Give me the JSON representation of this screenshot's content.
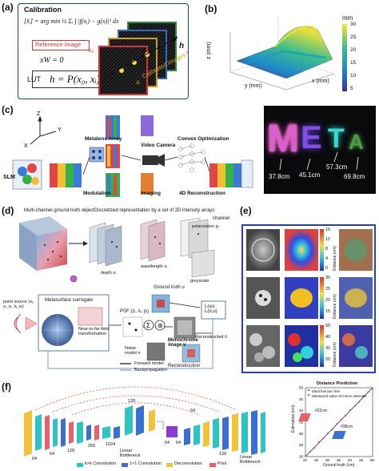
{
  "panels": {
    "a": {
      "label": "(a)",
      "calibration_title": "Calibration",
      "equation": "[x̂ᵢ] = arg min ½ Σᵢ ∫ |f(xᵢ) − g(x)|² dx",
      "reference_image": "Reference image",
      "xw_equation": "xW = 0",
      "lut_label": "LUT",
      "lut_equation": "h = P(x₀, xᵢ)",
      "calibrated_images": "Calibrated images f",
      "axis_h": "h",
      "axis_x0": "x₀",
      "axis_xi": "xᵢ"
    },
    "b": {
      "label": "(b)",
      "colorbar_unit": "mm",
      "colorbar_ticks": [
        "30",
        "25",
        "20",
        "15",
        "10",
        "5"
      ],
      "z_label": "z (mm)",
      "y_label": "y (mm)",
      "x_label": "x (mm)"
    },
    "c": {
      "label": "(c)",
      "slm": "SLM",
      "metalens_array": "Metalens Array",
      "video_camera": "Video Camera",
      "convex_optimization": "Convex Optimization",
      "modulation": "Modulation",
      "imaging": "Imaging",
      "reconstruction_4d": "4D Reconstruction",
      "distances": [
        "37.8cm",
        "45.1cm",
        "57.3cm",
        "69.8cm"
      ],
      "meta_letters": [
        "M",
        "E",
        "T",
        "A"
      ]
    },
    "d": {
      "label": "(d)",
      "multichannel_title": "Multi-channel ground-truth object",
      "discretized_title": "Discretized representation by a set of 2D intensity arrays",
      "channel": "channel",
      "polarization": "polarization pᵢ",
      "wavelength": "wavelength λᵢ",
      "depth": "depth zᵢ",
      "greyscale": "greyscale",
      "ground_truth": "Ground truth u",
      "point_source": "point source (xᵢ, yᵢ, zᵢ, λᵢ, pᵢ)",
      "metasurface_surrogate": "Metasurface surrogate",
      "near_far": "Near-to-far-field transformation",
      "psf": "PSF (zᵢ, λᵢ, pᵢ)",
      "noise_model": "Noise model n",
      "monochrome": "Monochrome image v",
      "reconstructed": "Reconstructed û",
      "loss": "Loss L(û,u)",
      "reconstruction": "Reconstruction",
      "forward_model": "Forward model",
      "backpropagation": "Backpropagation"
    },
    "e": {
      "label": "(e)",
      "colorbar_ticks_top": [
        "16",
        "12",
        "8",
        "4",
        "0"
      ],
      "colorbar_ticks_mid": [
        "30",
        "25",
        "20",
        "15"
      ],
      "colorbar_ticks_bot": [
        "50",
        "40",
        "30",
        "20"
      ],
      "axis_label": "Distance (cm)"
    },
    "f": {
      "label": "(f)",
      "layer_sizes": [
        "64",
        "64",
        "128",
        "256",
        "1024",
        "128",
        "64",
        "64",
        "128",
        "64"
      ],
      "linear_bottleneck_1": "Linear Bottleneck",
      "linear_bottleneck_2": "Linear Bottleneck",
      "legend": [
        "k×k Convolution",
        "1×1 Convolution",
        "Deconvolution",
        "Pool"
      ],
      "plot_title": "Distance Prediction",
      "plot_legend_1": "Ideal function line",
      "plot_legend_2": "Measured value at 0.5cm intervals",
      "xlabel": "Ground truth (cm)",
      "ylabel": "Estimation (cm)",
      "annot_1": "#22cm",
      "annot_2": "#38cm",
      "legend_colors": [
        "#2ec4c4",
        "#3b6fd1",
        "#f2c23a",
        "#e8606a"
      ]
    }
  },
  "chart_data": {
    "type": "scatter",
    "title": "Distance Prediction",
    "xlabel": "Ground truth (cm)",
    "ylabel": "Estimation (cm)",
    "xlim": [
      20,
      50
    ],
    "ylim": [
      20,
      50
    ],
    "x_ticks": [
      "20",
      "25",
      "30",
      "35",
      "40",
      "45",
      "50"
    ],
    "y_ticks": [
      "20",
      "25",
      "30",
      "35",
      "40",
      "45",
      "50"
    ],
    "series": [
      {
        "name": "Ideal function line",
        "x": [
          20,
          50
        ],
        "y": [
          20,
          50
        ]
      },
      {
        "name": "Measured value at 0.5cm intervals",
        "x": [
          20,
          22,
          24,
          26,
          28,
          30,
          32,
          34,
          36,
          38,
          40,
          42,
          44,
          46,
          48,
          50
        ],
        "y": [
          20.2,
          22.1,
          23.8,
          26.3,
          28.0,
          30.1,
          31.8,
          34.2,
          36.1,
          37.9,
          40.3,
          42.0,
          43.8,
          46.2,
          48.1,
          49.8
        ]
      }
    ]
  }
}
